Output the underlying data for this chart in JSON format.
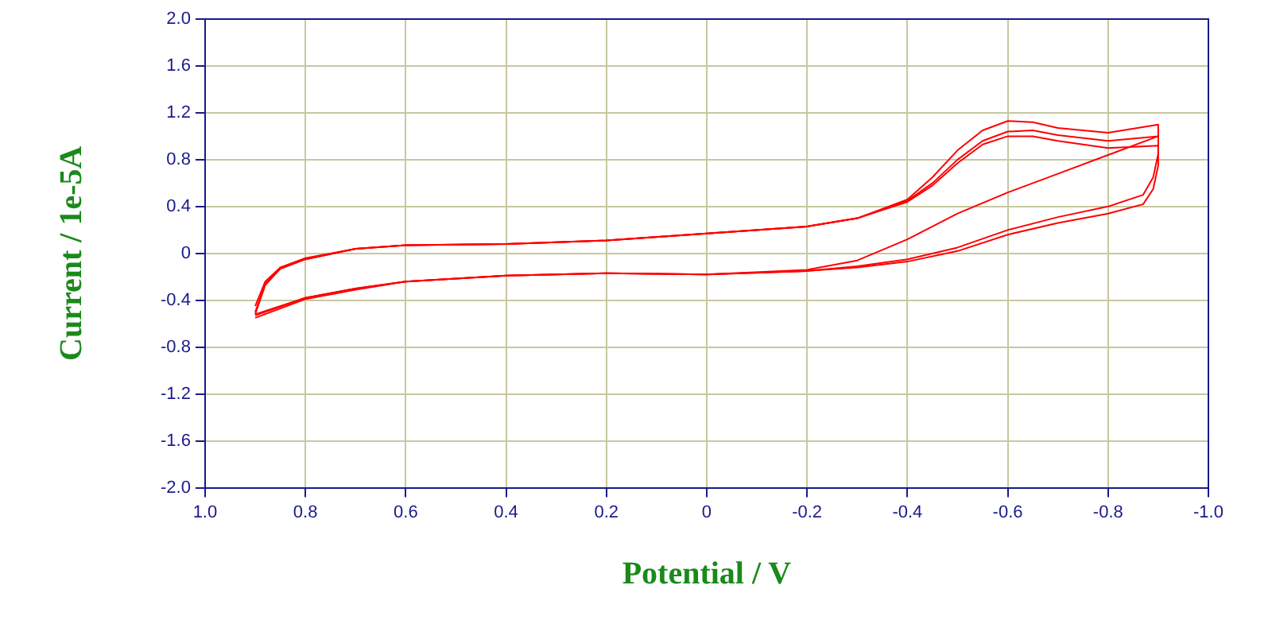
{
  "chart_data": {
    "type": "line",
    "xlabel": "Potential / V",
    "ylabel": "Current / 1e-5A",
    "xlim": [
      1.0,
      -1.0
    ],
    "ylim": [
      -2.0,
      2.0
    ],
    "xticks": [
      {
        "value": 1,
        "label": "1.0"
      },
      0.8,
      0.6,
      0.4,
      0.2,
      0,
      -0.2,
      -0.4,
      -0.6,
      -0.8,
      {
        "value": -1,
        "label": "-1.0"
      }
    ],
    "yticks": [
      {
        "value": 2,
        "label": "2.0"
      },
      1.6,
      1.2,
      0.8,
      0.4,
      0,
      -0.4,
      -0.8,
      -1.2,
      -1.6,
      {
        "value": -2,
        "label": "-2.0"
      }
    ],
    "grid": true,
    "legend": false,
    "marker": "none",
    "line_style": "solid",
    "series": [
      {
        "color": "#ff0000",
        "x": [
          0.9,
          0.88,
          0.85,
          0.8,
          0.7,
          0.6,
          0.4,
          0.2,
          0,
          -0.2,
          -0.3,
          -0.4,
          -0.45,
          -0.5,
          -0.55,
          -0.6,
          -0.65,
          -0.7,
          -0.8,
          -0.9,
          -0.9,
          -0.8,
          -0.7,
          -0.6,
          -0.5,
          -0.4,
          -0.3,
          -0.2,
          0,
          0.2,
          0.4,
          0.6,
          0.7,
          0.8,
          0.9
        ],
        "values": [
          -0.45,
          -0.24,
          -0.12,
          -0.04,
          0.04,
          0.07,
          0.08,
          0.11,
          0.17,
          0.23,
          0.3,
          0.46,
          0.65,
          0.88,
          1.05,
          1.13,
          1.12,
          1.07,
          1.03,
          1.1,
          1.0,
          0.84,
          0.68,
          0.52,
          0.34,
          0.12,
          -0.06,
          -0.14,
          -0.18,
          -0.17,
          -0.19,
          -0.24,
          -0.3,
          -0.38,
          -0.52
        ]
      },
      {
        "color": "#ff0000",
        "x": [
          0.9,
          0.88,
          0.85,
          0.8,
          0.7,
          0.6,
          0.4,
          0.2,
          0,
          -0.2,
          -0.3,
          -0.4,
          -0.45,
          -0.5,
          -0.55,
          -0.6,
          -0.65,
          -0.7,
          -0.8,
          -0.9,
          -0.9,
          -0.89,
          -0.87,
          -0.8,
          -0.7,
          -0.6,
          -0.5,
          -0.4,
          -0.3,
          -0.2,
          0,
          0.2,
          0.4,
          0.6,
          0.7,
          0.8,
          0.9
        ],
        "values": [
          -0.5,
          -0.26,
          -0.13,
          -0.05,
          0.04,
          0.07,
          0.08,
          0.11,
          0.17,
          0.23,
          0.3,
          0.45,
          0.6,
          0.8,
          0.96,
          1.04,
          1.05,
          1.01,
          0.96,
          1.0,
          0.85,
          0.65,
          0.5,
          0.4,
          0.31,
          0.2,
          0.05,
          -0.05,
          -0.11,
          -0.15,
          -0.18,
          -0.17,
          -0.19,
          -0.24,
          -0.3,
          -0.38,
          -0.53
        ]
      },
      {
        "color": "#ff0000",
        "x": [
          0.9,
          0.88,
          0.85,
          0.8,
          0.7,
          0.6,
          0.4,
          0.2,
          0,
          -0.2,
          -0.3,
          -0.4,
          -0.45,
          -0.5,
          -0.55,
          -0.6,
          -0.65,
          -0.7,
          -0.8,
          -0.9,
          -0.9,
          -0.89,
          -0.87,
          -0.8,
          -0.7,
          -0.6,
          -0.5,
          -0.4,
          -0.3,
          -0.2,
          0,
          0.2,
          0.4,
          0.6,
          0.7,
          0.8,
          0.9
        ],
        "values": [
          -0.52,
          -0.27,
          -0.13,
          -0.05,
          0.04,
          0.07,
          0.08,
          0.11,
          0.17,
          0.23,
          0.3,
          0.44,
          0.58,
          0.77,
          0.93,
          1.0,
          1.0,
          0.96,
          0.9,
          0.92,
          0.75,
          0.55,
          0.42,
          0.34,
          0.26,
          0.16,
          0.02,
          -0.07,
          -0.12,
          -0.15,
          -0.18,
          -0.17,
          -0.19,
          -0.24,
          -0.31,
          -0.39,
          -0.55
        ]
      }
    ]
  }
}
